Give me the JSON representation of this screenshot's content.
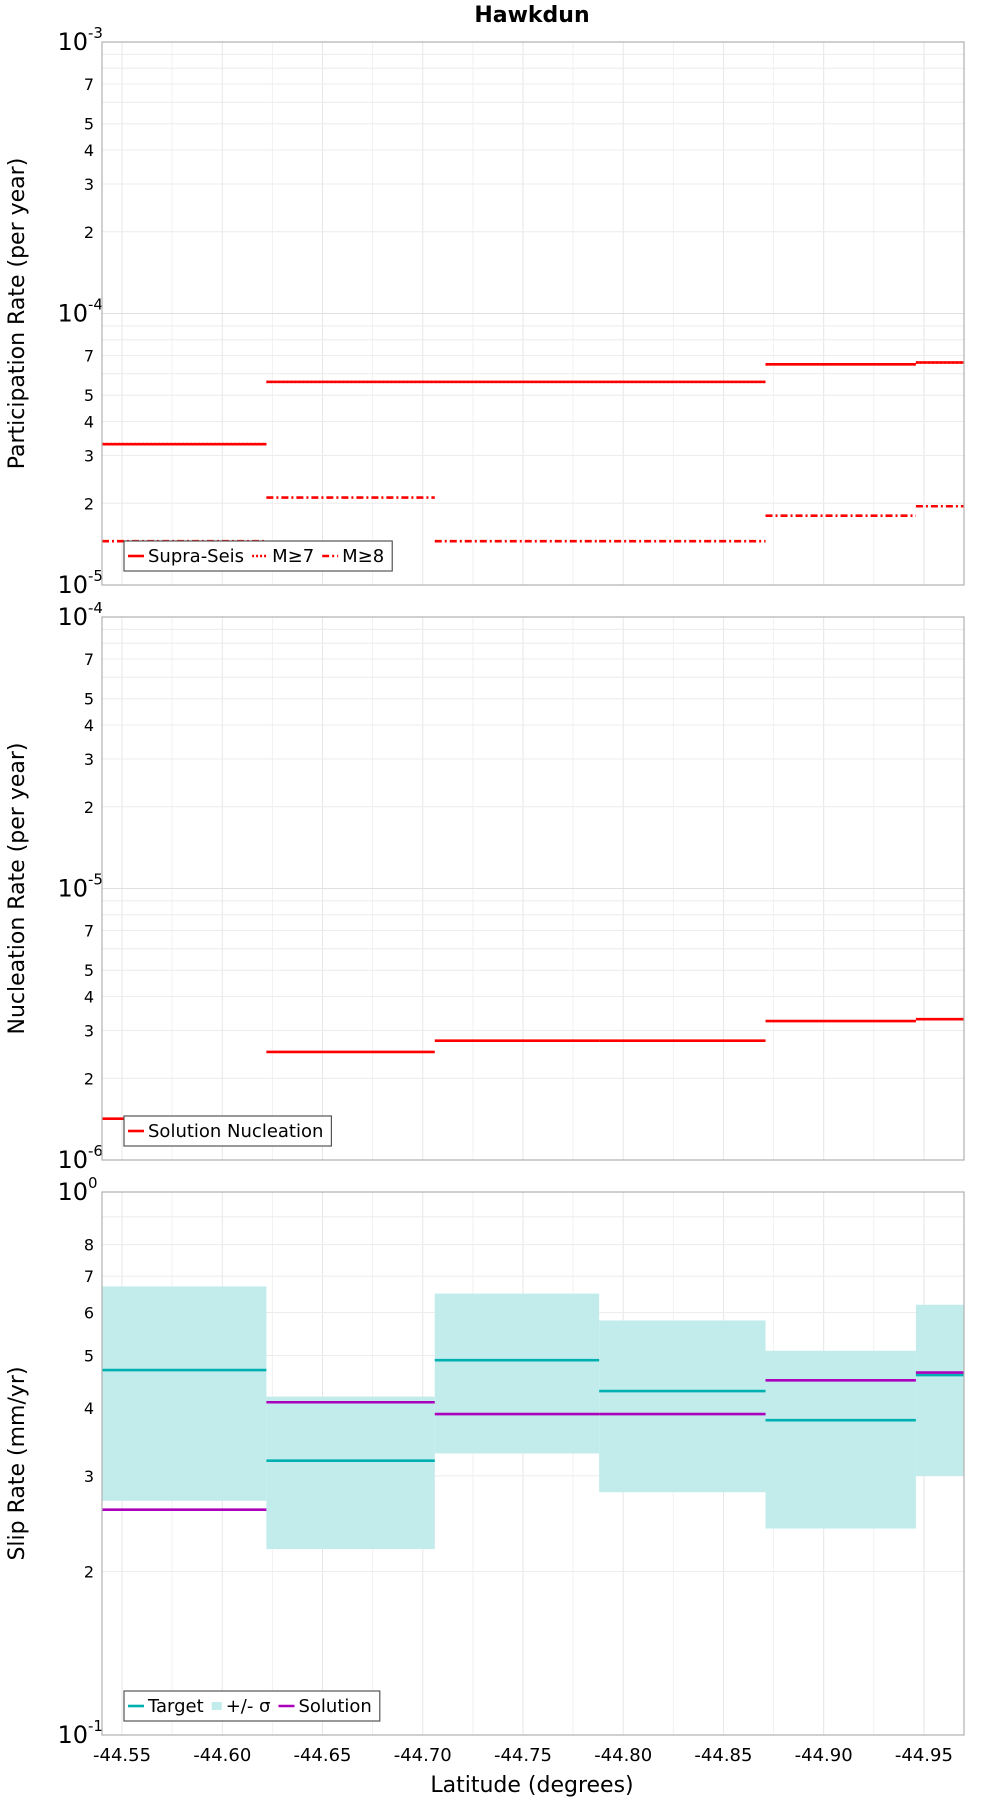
{
  "chart_data": {
    "title": "Hawkdun",
    "type": "line",
    "shared_x": {
      "label": "Latitude (degrees)",
      "lim": [
        -44.54,
        -44.97
      ],
      "ticks": [
        -44.55,
        -44.6,
        -44.65,
        -44.7,
        -44.75,
        -44.8,
        -44.85,
        -44.9,
        -44.95
      ],
      "tick_labels": [
        "-44.55",
        "-44.60",
        "-44.65",
        "-44.70",
        "-44.75",
        "-44.80",
        "-44.85",
        "-44.90",
        "-44.95"
      ],
      "section_edges": [
        -44.54,
        -44.622,
        -44.706,
        -44.788,
        -44.871,
        -44.946,
        -44.97
      ]
    },
    "panels": [
      {
        "id": "participation",
        "ylabel": "Participation Rate (per year)",
        "yscale": "log",
        "ylim": [
          1e-05,
          0.001
        ],
        "major_ticks": [
          {
            "base": "10",
            "exp": "-5"
          },
          {
            "base": "10",
            "exp": "-4"
          },
          {
            "base": "10",
            "exp": "-3"
          }
        ],
        "minor_tick_labels": [
          "2",
          "3",
          "4",
          "5",
          "7"
        ],
        "grid": true,
        "legend": {
          "position": "bottom-left",
          "entries": [
            "Supra-Seis",
            "M≥7",
            "M≥8"
          ]
        },
        "series": [
          {
            "name": "Supra-Seis",
            "style": "solid",
            "color": "#ff0000",
            "values": [
              3.3e-05,
              5.6e-05,
              5.6e-05,
              5.6e-05,
              6.5e-05,
              6.6e-05
            ]
          },
          {
            "name": "M≥7",
            "style": "dotted",
            "color": "#ff0000",
            "values": [
              3.3e-05,
              5.6e-05,
              5.6e-05,
              5.6e-05,
              6.5e-05,
              6.6e-05
            ]
          },
          {
            "name": "M≥8",
            "style": "dashdot",
            "color": "#ff0000",
            "values": [
              1.45e-05,
              2.1e-05,
              1.45e-05,
              1.45e-05,
              1.8e-05,
              1.95e-05
            ]
          }
        ]
      },
      {
        "id": "nucleation",
        "ylabel": "Nucleation Rate (per year)",
        "yscale": "log",
        "ylim": [
          1e-06,
          0.0001
        ],
        "major_ticks": [
          {
            "base": "10",
            "exp": "-6"
          },
          {
            "base": "10",
            "exp": "-5"
          },
          {
            "base": "10",
            "exp": "-4"
          }
        ],
        "minor_tick_labels": [
          "2",
          "3",
          "4",
          "5",
          "7"
        ],
        "grid": true,
        "legend": {
          "position": "bottom-left",
          "entries": [
            "Solution Nucleation"
          ]
        },
        "series": [
          {
            "name": "Solution Nucleation",
            "style": "solid",
            "color": "#ff0000",
            "values": [
              1.42e-06,
              2.5e-06,
              2.75e-06,
              2.75e-06,
              3.25e-06,
              3.3e-06
            ]
          }
        ]
      },
      {
        "id": "slip",
        "ylabel": "Slip Rate (mm/yr)",
        "yscale": "log",
        "ylim": [
          0.1,
          1.0
        ],
        "major_ticks": [
          {
            "base": "10",
            "exp": "-1"
          },
          {
            "base": "10",
            "exp": "0"
          }
        ],
        "minor_tick_labels": [
          "2",
          "3",
          "4",
          "5",
          "6",
          "7",
          "8"
        ],
        "grid": true,
        "legend": {
          "position": "bottom-left",
          "entries": [
            "Target",
            "+/- σ",
            "Solution"
          ]
        },
        "band": {
          "name": "+/- σ",
          "color": "#c2ecec",
          "lower": [
            0.27,
            0.22,
            0.33,
            0.28,
            0.24,
            0.3
          ],
          "upper": [
            0.67,
            0.42,
            0.65,
            0.58,
            0.51,
            0.62
          ]
        },
        "series": [
          {
            "name": "Target",
            "style": "solid",
            "color": "#00b0b0",
            "values": [
              0.47,
              0.32,
              0.49,
              0.43,
              0.38,
              0.46
            ]
          },
          {
            "name": "Solution",
            "style": "solid",
            "color": "#aa00bb",
            "values": [
              0.26,
              0.41,
              0.39,
              0.39,
              0.45,
              0.465
            ]
          }
        ]
      }
    ]
  }
}
